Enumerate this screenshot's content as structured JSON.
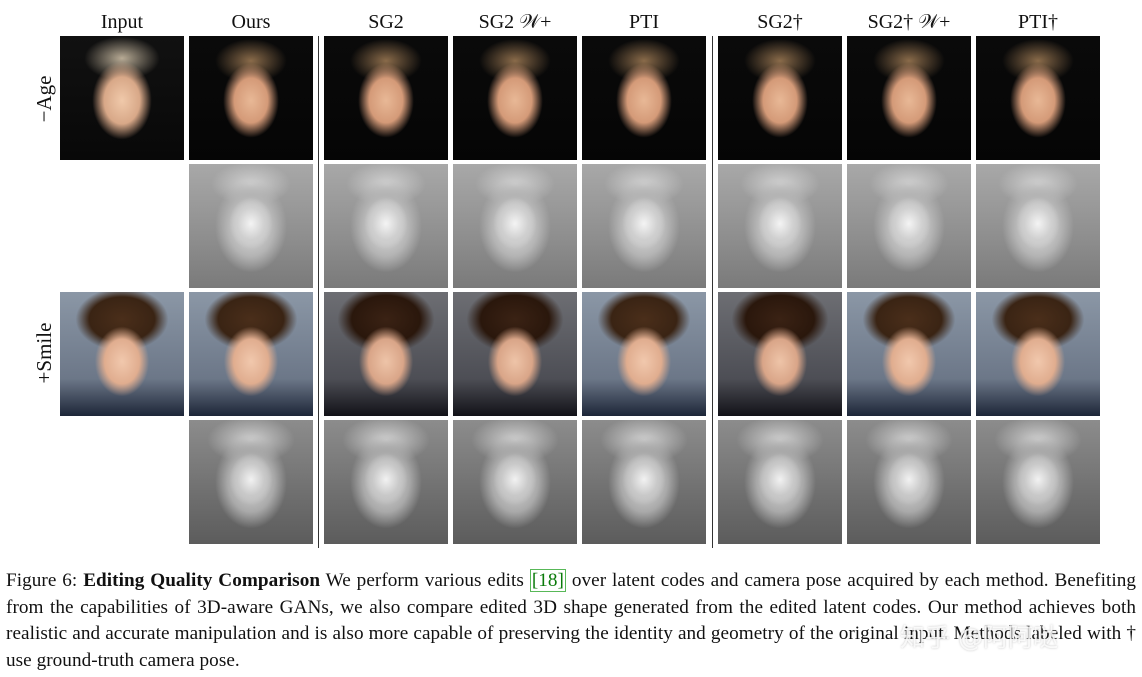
{
  "figure": {
    "columns": [
      {
        "id": "input",
        "label": "Input"
      },
      {
        "id": "ours",
        "label": "Ours"
      },
      {
        "id": "sg2",
        "label": "SG2"
      },
      {
        "id": "sg2w",
        "label": "SG2 𝒲+"
      },
      {
        "id": "pti",
        "label": "PTI"
      },
      {
        "id": "sg2gt",
        "label": "SG2†"
      },
      {
        "id": "sg2wgt",
        "label": "SG2† 𝒲+"
      },
      {
        "id": "ptigt",
        "label": "PTI†"
      }
    ],
    "rows": [
      {
        "id": "age",
        "label": "−Age"
      },
      {
        "id": "smile",
        "label": "+Smile"
      }
    ]
  },
  "caption": {
    "figure_number": "Figure 6:",
    "title": "Editing Quality Comparison",
    "part1": "We perform various edits",
    "citation": "[18]",
    "part2": "over latent codes and camera pose acquired by each method. Benefiting from the capabilities of 3D-aware GANs, we also compare edited 3D shape generated from the edited latent codes. Our method achieves both realistic and accurate manipulation and is also more capable of preserving the identity and geometry of the original input. Methods labeled with † use ground-truth camera pose."
  },
  "watermark": "知乎 @阿阿哒"
}
